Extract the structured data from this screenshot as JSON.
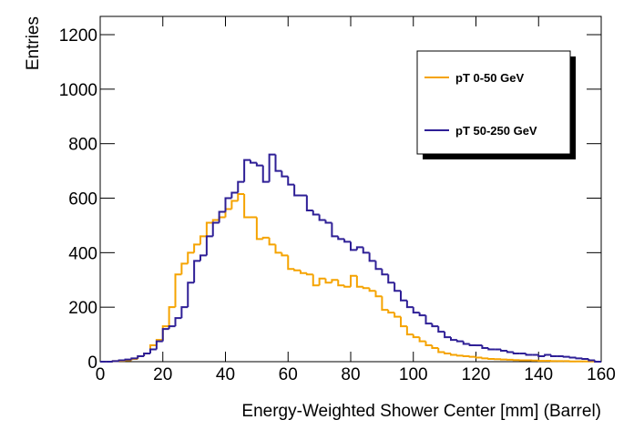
{
  "chart_data": {
    "type": "histogram",
    "xlabel": "Energy-Weighted Shower Center [mm] (Barrel)",
    "ylabel": "Entries",
    "bins": [
      0,
      2,
      4,
      6,
      8,
      10,
      12,
      14,
      16,
      18,
      20,
      22,
      24,
      26,
      28,
      30,
      32,
      34,
      36,
      38,
      40,
      42,
      44,
      46,
      48,
      50,
      52,
      54,
      56,
      58,
      60,
      62,
      64,
      66,
      68,
      70,
      72,
      74,
      76,
      78,
      80,
      82,
      84,
      86,
      88,
      90,
      92,
      94,
      96,
      98,
      100,
      102,
      104,
      106,
      108,
      110,
      112,
      114,
      116,
      118,
      120,
      122,
      124,
      126,
      128,
      130,
      132,
      134,
      136,
      138,
      140,
      142,
      144,
      146,
      148,
      150,
      152,
      154,
      156,
      158,
      160
    ],
    "series": [
      {
        "name": "pT 0-50 GeV",
        "color": "#f5a300",
        "values": [
          0,
          0,
          2,
          3,
          5,
          10,
          20,
          30,
          60,
          80,
          130,
          200,
          320,
          360,
          400,
          430,
          460,
          510,
          520,
          530,
          560,
          590,
          615,
          530,
          530,
          450,
          455,
          430,
          400,
          390,
          340,
          335,
          325,
          320,
          280,
          305,
          290,
          300,
          280,
          275,
          315,
          275,
          270,
          260,
          240,
          190,
          180,
          165,
          130,
          100,
          90,
          75,
          60,
          50,
          35,
          30,
          25,
          22,
          20,
          18,
          15,
          12,
          10,
          9,
          8,
          7,
          6,
          5,
          5,
          4,
          3,
          3,
          2,
          2,
          2,
          1,
          1,
          1,
          1,
          0
        ]
      },
      {
        "name": "pT 50-250 GeV",
        "color": "#2e1f96",
        "values": [
          0,
          0,
          2,
          5,
          8,
          12,
          20,
          30,
          45,
          75,
          120,
          130,
          160,
          200,
          290,
          370,
          390,
          460,
          510,
          550,
          600,
          620,
          660,
          740,
          730,
          720,
          660,
          760,
          700,
          680,
          650,
          610,
          610,
          555,
          540,
          520,
          510,
          460,
          450,
          440,
          410,
          420,
          400,
          370,
          340,
          320,
          290,
          260,
          225,
          200,
          180,
          170,
          140,
          130,
          110,
          90,
          80,
          75,
          65,
          60,
          60,
          50,
          45,
          45,
          40,
          35,
          30,
          30,
          25,
          25,
          20,
          25,
          20,
          20,
          18,
          15,
          12,
          10,
          5,
          0
        ]
      }
    ],
    "xlim": [
      0,
      160
    ],
    "xticks": [
      0,
      20,
      40,
      60,
      80,
      100,
      120,
      140,
      160
    ],
    "ylim": [
      0,
      1267
    ],
    "yticks": [
      0,
      200,
      400,
      600,
      800,
      1000,
      1200
    ],
    "legend": "upper right"
  }
}
